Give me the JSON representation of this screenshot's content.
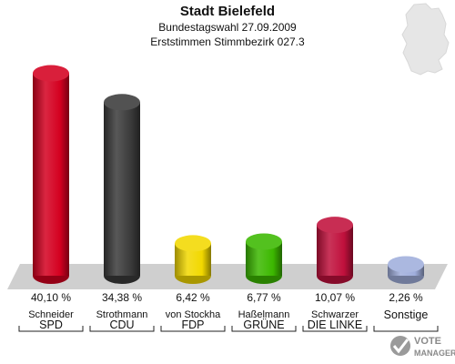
{
  "chart_data": {
    "type": "bar",
    "title": "Stadt Bielefeld",
    "subtitle": "Bundestagswahl 27.09.2009",
    "subtitle2": "Erststimmen Stimmbezirk 027.3",
    "ylim": [
      0,
      42
    ],
    "categories": [
      "SPD",
      "CDU",
      "FDP",
      "GRÜNE",
      "DIE LINKE",
      "Sonstige"
    ],
    "candidates": [
      "Schneider",
      "Strothmann",
      "von Stockha",
      "Haßelmann",
      "Schwarzer",
      ""
    ],
    "values": [
      40.1,
      34.38,
      6.42,
      6.77,
      10.07,
      2.26
    ],
    "value_labels": [
      "40,10 %",
      "34,38 %",
      "6,42 %",
      "6,77 %",
      "10,07 %",
      "2,26 %"
    ],
    "colors": [
      "#d40020",
      "#3a3a3a",
      "#f2d800",
      "#3cb800",
      "#c0103c",
      "#a0aedc"
    ]
  },
  "logo": {
    "line1": "VOTE",
    "line2": "MANAGER"
  }
}
